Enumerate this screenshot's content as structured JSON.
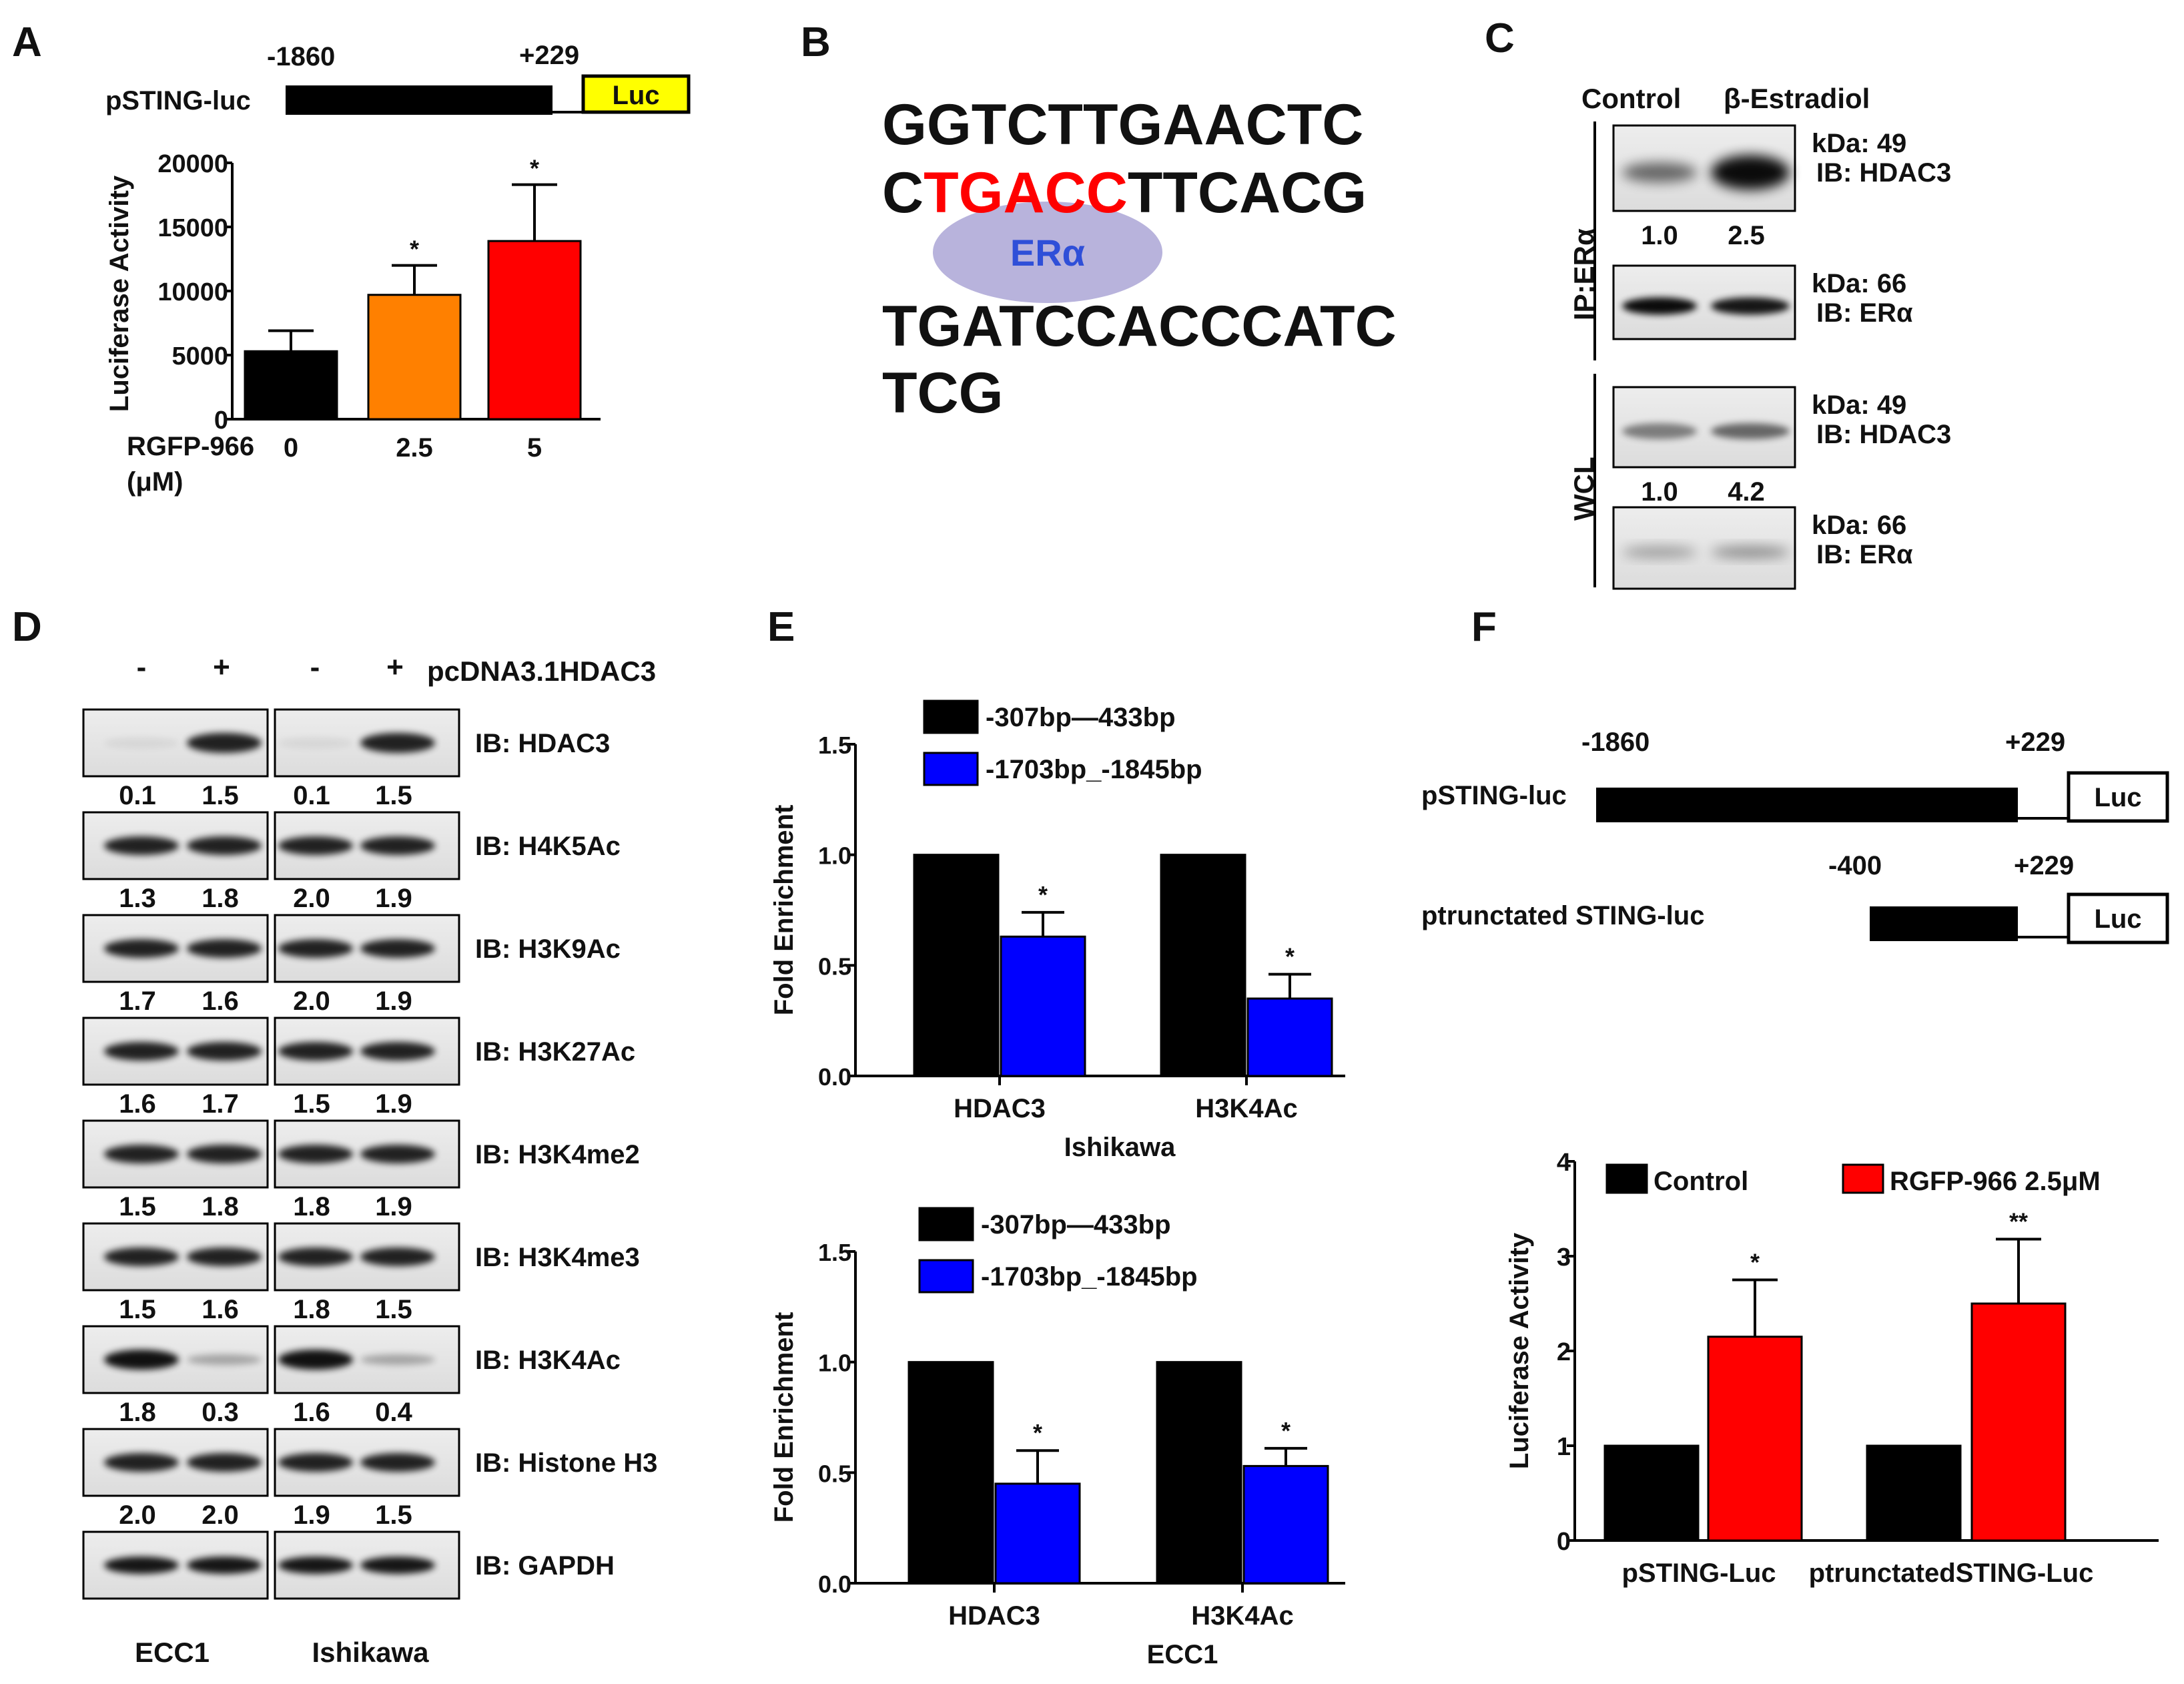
{
  "panels": {
    "A": {
      "letter": "A",
      "construct": {
        "label": "pSTING-luc",
        "start": "-1860",
        "end": "+229",
        "reporter": "Luc"
      },
      "x_group_label": "RGFP-966",
      "x_unit": "(μM)",
      "star": "*"
    },
    "B": {
      "letter": "B",
      "seq_line1": "GGTCTTGAACTC",
      "seq_line2_a": "C",
      "seq_line2_motif": "TGACC",
      "seq_line2_b": "TTCACG",
      "seq_line3": "TGATCCACCCATC",
      "seq_line4": "TCG",
      "factor": "ERα"
    },
    "C": {
      "letter": "C",
      "col_control": "Control",
      "col_treatment": "β-Estradiol",
      "group_ip": "IP:ERα",
      "group_wcl": "WCL",
      "blots": [
        {
          "kda": "kDa: 49",
          "ib": "IB: HDAC3",
          "q1": "1.0",
          "q2": "2.5"
        },
        {
          "kda": "kDa: 66",
          "ib": "IB: ERα",
          "q1": "",
          "q2": ""
        },
        {
          "kda": "kDa: 49",
          "ib": "IB: HDAC3",
          "q1": "1.0",
          "q2": "4.2"
        },
        {
          "kda": "kDa: 66",
          "ib": "IB: ERα",
          "q1": "",
          "q2": ""
        }
      ]
    },
    "D": {
      "letter": "D",
      "header_minus": "-",
      "header_plus": "+",
      "header_plasmid": "pcDNA3.1HDAC3",
      "cell_left": "ECC1",
      "cell_right": "Ishikawa",
      "rows": [
        {
          "ib": "IB: HDAC3",
          "q": [
            "0.1",
            "1.5",
            "0.1",
            "1.5"
          ]
        },
        {
          "ib": "IB: H4K5Ac",
          "q": [
            "1.3",
            "1.8",
            "2.0",
            "1.9"
          ]
        },
        {
          "ib": "IB: H3K9Ac",
          "q": [
            "1.7",
            "1.6",
            "2.0",
            "1.9"
          ]
        },
        {
          "ib": "IB: H3K27Ac",
          "q": [
            "1.6",
            "1.7",
            "1.5",
            "1.9"
          ]
        },
        {
          "ib": "IB: H3K4me2",
          "q": [
            "1.5",
            "1.8",
            "1.8",
            "1.9"
          ]
        },
        {
          "ib": "IB: H3K4me3",
          "q": [
            "1.5",
            "1.6",
            "1.8",
            "1.5"
          ]
        },
        {
          "ib": "IB: H3K4Ac",
          "q": [
            "1.8",
            "0.3",
            "1.6",
            "0.4"
          ]
        },
        {
          "ib": "IB: Histone H3",
          "q": [
            "2.0",
            "2.0",
            "1.9",
            "1.5"
          ]
        },
        {
          "ib": "IB: GAPDH",
          "q": [
            "",
            "",
            "",
            ""
          ]
        }
      ]
    },
    "E": {
      "letter": "E",
      "star": "*"
    },
    "F": {
      "letter": "F",
      "constructs": [
        {
          "label": "pSTING-luc",
          "start": "-1860",
          "end": "+229",
          "reporter": "Luc"
        },
        {
          "label": "ptrunctated STING-luc",
          "start": "-400",
          "end": "+229",
          "reporter": "Luc"
        }
      ]
    }
  },
  "colors": {
    "black": "#000000",
    "orange": "#ff8000",
    "red": "#ff0000",
    "blue": "#0000ff",
    "yellow": "#ffff00",
    "ellipse": "#b8b3dc",
    "factor_text": "#2f4fd8",
    "motif": "#ff0000"
  },
  "chart_data": [
    {
      "panel": "A",
      "type": "bar",
      "categories": [
        "0",
        "2.5",
        "5"
      ],
      "values": [
        5300,
        9700,
        13900
      ],
      "errors": [
        1600,
        2300,
        4400
      ],
      "bar_colors": [
        "#000000",
        "#ff8000",
        "#ff0000"
      ],
      "significance": [
        "",
        "*",
        "*"
      ],
      "title": "",
      "xlabel": "RGFP-966 (μM)",
      "ylabel": "Luciferase Activity",
      "ylim": [
        0,
        20000
      ],
      "yticks": [
        "0",
        "5000",
        "10000",
        "15000",
        "20000"
      ]
    },
    {
      "panel": "E-top",
      "type": "bar",
      "categories": [
        "HDAC3",
        "H3K4Ac"
      ],
      "series": [
        {
          "name": "-307bp—433bp",
          "values": [
            1.0,
            1.0
          ],
          "errors": [
            0,
            0
          ],
          "color": "#000000"
        },
        {
          "name": "-1703bp_-1845bp",
          "values": [
            0.63,
            0.35
          ],
          "errors": [
            0.11,
            0.11
          ],
          "color": "#0000ff"
        }
      ],
      "significance": [
        "*",
        "*"
      ],
      "xlabel": "Ishikawa",
      "ylabel": "Fold Enrichment",
      "ylim": [
        0,
        1.5
      ],
      "yticks": [
        "0.0",
        "0.5",
        "1.0",
        "1.5"
      ]
    },
    {
      "panel": "E-bottom",
      "type": "bar",
      "categories": [
        "HDAC3",
        "H3K4Ac"
      ],
      "series": [
        {
          "name": "-307bp—433bp",
          "values": [
            1.0,
            1.0
          ],
          "errors": [
            0,
            0
          ],
          "color": "#000000"
        },
        {
          "name": "-1703bp_-1845bp",
          "values": [
            0.45,
            0.53
          ],
          "errors": [
            0.15,
            0.08
          ],
          "color": "#0000ff"
        }
      ],
      "significance": [
        "*",
        "*"
      ],
      "xlabel": "ECC1",
      "ylabel": "Fold Enrichment",
      "ylim": [
        0,
        1.5
      ],
      "yticks": [
        "0.0",
        "0.5",
        "1.0",
        "1.5"
      ]
    },
    {
      "panel": "F",
      "type": "bar",
      "categories": [
        "pSTING-Luc",
        "ptrunctatedSTING-Luc"
      ],
      "series": [
        {
          "name": "Control",
          "values": [
            1.0,
            1.0
          ],
          "errors": [
            0,
            0
          ],
          "color": "#000000"
        },
        {
          "name": "RGFP-966 2.5μM",
          "values": [
            2.15,
            2.5
          ],
          "errors": [
            0.6,
            0.68
          ],
          "color": "#ff0000"
        }
      ],
      "significance": [
        "*",
        "**"
      ],
      "xlabel": "",
      "ylabel": "Luciferase Activity",
      "ylim": [
        0,
        4
      ],
      "yticks": [
        "0",
        "1",
        "2",
        "3",
        "4"
      ]
    }
  ]
}
